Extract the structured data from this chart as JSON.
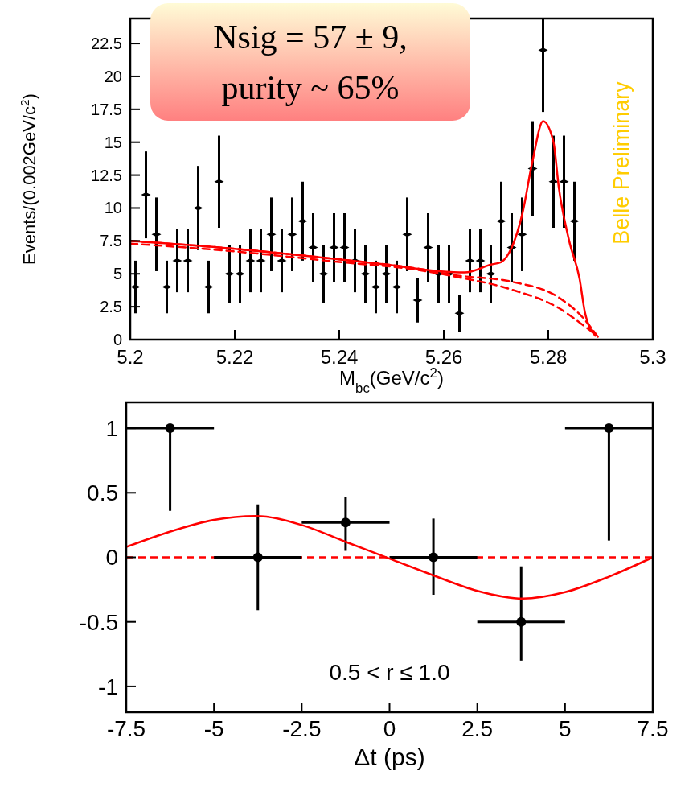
{
  "chart_data": [
    {
      "type": "scatter",
      "xlabel": "M$_{bc}$(GeV/c$^{2}$)",
      "ylabel": "Events/(0.002GeV/c$^{2}$)",
      "xlim": [
        5.2,
        5.3
      ],
      "ylim": [
        0,
        24.4
      ],
      "xticks": [
        5.2,
        5.22,
        5.24,
        5.26,
        5.28,
        5.3
      ],
      "yticks": [
        0,
        2.5,
        5,
        7.5,
        10,
        12.5,
        15,
        17.5,
        20,
        22.5
      ],
      "annotations": [
        "Nsig = 57 ± 9,",
        "purity ~ 65%",
        "Belle Preliminary"
      ],
      "series": [
        {
          "color": "#000000",
          "marker": "diamond",
          "x": [
            5.201,
            5.203,
            5.205,
            5.207,
            5.209,
            5.211,
            5.213,
            5.215,
            5.217,
            5.219,
            5.221,
            5.223,
            5.225,
            5.227,
            5.229,
            5.231,
            5.233,
            5.235,
            5.237,
            5.239,
            5.241,
            5.243,
            5.245,
            5.247,
            5.249,
            5.251,
            5.253,
            5.255,
            5.257,
            5.259,
            5.261,
            5.263,
            5.265,
            5.267,
            5.269,
            5.271,
            5.273,
            5.275,
            5.277,
            5.279,
            5.281,
            5.283,
            5.285
          ],
          "values": [
            4,
            11,
            8,
            4,
            6,
            6,
            10,
            4,
            12,
            5,
            5,
            6,
            6,
            8,
            6,
            8,
            9,
            7,
            5,
            7,
            7,
            6,
            5,
            4,
            5,
            4,
            8,
            3,
            7,
            5,
            5,
            2,
            6,
            6,
            5,
            9,
            7,
            8,
            13,
            22,
            12,
            12,
            9
          ],
          "errors": [
            2,
            3.3,
            2.8,
            2,
            2.4,
            2.4,
            3.2,
            2,
            3.5,
            2.2,
            2.2,
            2.4,
            2.4,
            2.8,
            2.4,
            2.8,
            3,
            2.6,
            2.2,
            2.6,
            2.6,
            2.4,
            2.2,
            2,
            2.2,
            2,
            2.8,
            1.7,
            2.6,
            2.2,
            2.2,
            1.4,
            2.4,
            2.4,
            2.2,
            3,
            2.6,
            2.8,
            3.6,
            [
              17.3,
              24.4
            ],
            3.5,
            3.5,
            3
          ]
        },
        {
          "type": "line",
          "color": "#ff0000",
          "line_style": "solid",
          "x": [
            5.2,
            5.22,
            5.24,
            5.249,
            5.259,
            5.264,
            5.269,
            5.271,
            5.273,
            5.275,
            5.277,
            5.279,
            5.281,
            5.282,
            5.284,
            5.286,
            5.287,
            5.289
          ],
          "values": [
            7.5,
            6.9,
            6.1,
            5.7,
            5.2,
            5.1,
            5.7,
            5.9,
            7.0,
            9.5,
            13.6,
            16.6,
            15.0,
            11.6,
            7.5,
            4.6,
            2.1,
            0.3
          ]
        },
        {
          "type": "line",
          "color": "#ff0000",
          "line_style": "dashed",
          "x": [
            5.2,
            5.22,
            5.24,
            5.255,
            5.262,
            5.273,
            5.282,
            5.287,
            5.2895
          ],
          "values": [
            7.5,
            6.9,
            6.1,
            5.4,
            4.9,
            4.4,
            3.2,
            1.5,
            0.2
          ]
        },
        {
          "type": "line",
          "color": "#ff0000",
          "line_style": "dashed",
          "x": [
            5.2,
            5.22,
            5.24,
            5.255,
            5.262,
            5.273,
            5.282,
            5.287,
            5.289
          ],
          "values": [
            7.3,
            6.7,
            5.9,
            5.3,
            4.8,
            3.8,
            2.4,
            1.0,
            0.4
          ]
        }
      ]
    },
    {
      "type": "scatter",
      "xlabel": "Δt (ps)",
      "xlim": [
        -7.5,
        7.5
      ],
      "ylim": [
        -1.2,
        1.2
      ],
      "xticks": [
        -7.5,
        -5,
        -2.5,
        0,
        2.5,
        5,
        7.5
      ],
      "yticks": [
        -1,
        -0.5,
        0,
        0.5,
        1
      ],
      "annotations": [
        "0.5 < r ≤ 1.0"
      ],
      "ref_lines": [
        {
          "axis": "y",
          "value": 0,
          "color": "#ff0000",
          "line_style": "dashed"
        }
      ],
      "series": [
        {
          "color": "#000000",
          "marker": "circle",
          "x": [
            -6.25,
            -3.75,
            -1.25,
            1.25,
            3.75,
            6.25
          ],
          "values": [
            1,
            0,
            0.27,
            0,
            -0.5,
            1
          ],
          "errors": [
            [
              0.36,
              1
            ],
            0.41,
            [
              0.05,
              0.47
            ],
            [
              -0.29,
              0.3
            ],
            [
              -0.8,
              -0.07
            ],
            [
              0.13,
              1
            ]
          ],
          "xerrors": [
            1.25,
            1.25,
            1.25,
            1.25,
            1.25,
            1.25
          ]
        },
        {
          "type": "line",
          "color": "#ff0000",
          "line_style": "solid",
          "x": [
            -7.5,
            -6,
            -5,
            -3.8,
            -2.5,
            -1.25,
            0,
            1.25,
            2.5,
            3.8,
            5,
            6.25,
            7.5
          ],
          "values": [
            0.08,
            0.22,
            0.29,
            0.32,
            0.25,
            0.12,
            -0.01,
            -0.14,
            -0.26,
            -0.32,
            -0.27,
            -0.15,
            0
          ]
        }
      ]
    }
  ]
}
